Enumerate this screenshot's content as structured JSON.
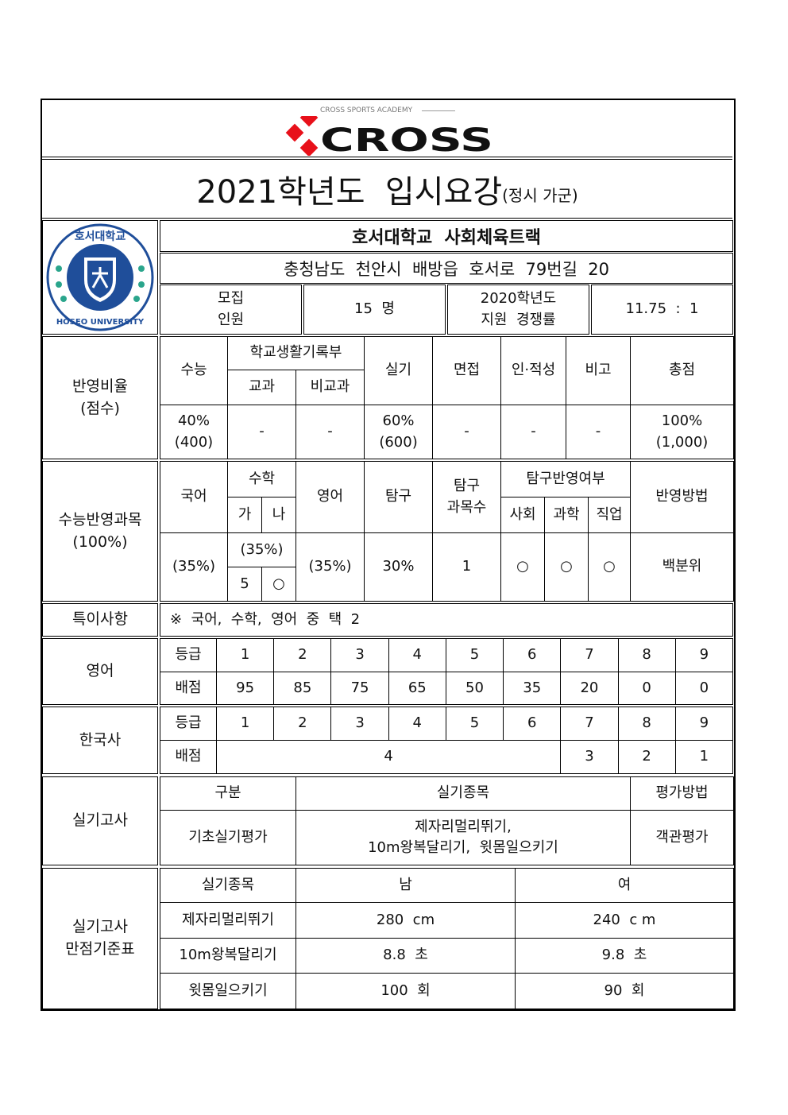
{
  "logo": {
    "small_text": "CROSS SPORTS ACADEMY",
    "brand": "CROSS",
    "accent": "#e8101a"
  },
  "title": {
    "main": "2021학년도  입시요강",
    "sub": "(정시 가군)"
  },
  "school": {
    "emblem_text": "호서대학교",
    "emblem_en": "HOSEO UNIVERSITY",
    "emblem_color": "#1f4e9a",
    "name": "호서대학교  사회체육트랙",
    "address": "충청남도  천안시  배방읍  호서로  79번길  20"
  },
  "info": {
    "recruit_label": "모집\n인원",
    "recruit_value": "15  명",
    "competition_label": "2020학년도\n지원  경쟁률",
    "competition_value": "11.75  :  1"
  },
  "ratio": {
    "label": "반영비율\n(점수)",
    "headers": {
      "suneung": "수능",
      "school_record": "학교생활기록부",
      "subject": "교과",
      "non_subject": "비교과",
      "practical": "실기",
      "interview": "면접",
      "aptitude": "인·적성",
      "note": "비고",
      "total": "총점"
    },
    "values": [
      "40%\n(400)",
      "-",
      "-",
      "60%\n(600)",
      "-",
      "-",
      "-",
      "100%\n(1,000)"
    ]
  },
  "suneung": {
    "label": "수능반영과목\n(100%)",
    "headers": {
      "korean": "국어",
      "math": "수학",
      "ga": "가",
      "na": "나",
      "english": "영어",
      "inquiry": "탐구",
      "inquiry_count": "탐구\n과목수",
      "inquiry_reflect": "탐구반영여부",
      "social": "사회",
      "science": "과학",
      "vocational": "직업",
      "method": "반영방법"
    },
    "values": {
      "korean": "(35%)",
      "math": "(35%)",
      "ga": "5",
      "na": "○",
      "english": "(35%)",
      "inquiry": "30%",
      "inquiry_count": "1",
      "social": "○",
      "science": "○",
      "vocational": "○",
      "method": "백분위"
    }
  },
  "special": {
    "label": "특이사항",
    "text": "※  국어,  수학,  영어  중  택  2"
  },
  "english": {
    "label": "영어",
    "grade_label": "등급",
    "score_label": "배점",
    "grades": [
      "1",
      "2",
      "3",
      "4",
      "5",
      "6",
      "7",
      "8",
      "9"
    ],
    "scores": [
      "95",
      "85",
      "75",
      "65",
      "50",
      "35",
      "20",
      "0",
      "0"
    ]
  },
  "history": {
    "label": "한국사",
    "grade_label": "등급",
    "score_label": "배점",
    "grades": [
      "1",
      "2",
      "3",
      "4",
      "5",
      "6",
      "7",
      "8",
      "9"
    ],
    "scores": [
      "4",
      "3",
      "2",
      "1"
    ]
  },
  "practical": {
    "label": "실기고사",
    "headers": [
      "구분",
      "실기종목",
      "평가방법"
    ],
    "row": [
      "기초실기평가",
      "제자리멀리뛰기,\n10m왕복달리기,  윗몸일으키기",
      "객관평가"
    ]
  },
  "perfect": {
    "label": "실기고사\n만점기준표",
    "headers": [
      "실기종목",
      "남",
      "여"
    ],
    "rows": [
      [
        "제자리멀리뛰기",
        "280  cm",
        "240  c m"
      ],
      [
        "10m왕복달리기",
        "8.8  초",
        "9.8  초"
      ],
      [
        "윗몸일으키기",
        "100  회",
        "90  회"
      ]
    ]
  }
}
